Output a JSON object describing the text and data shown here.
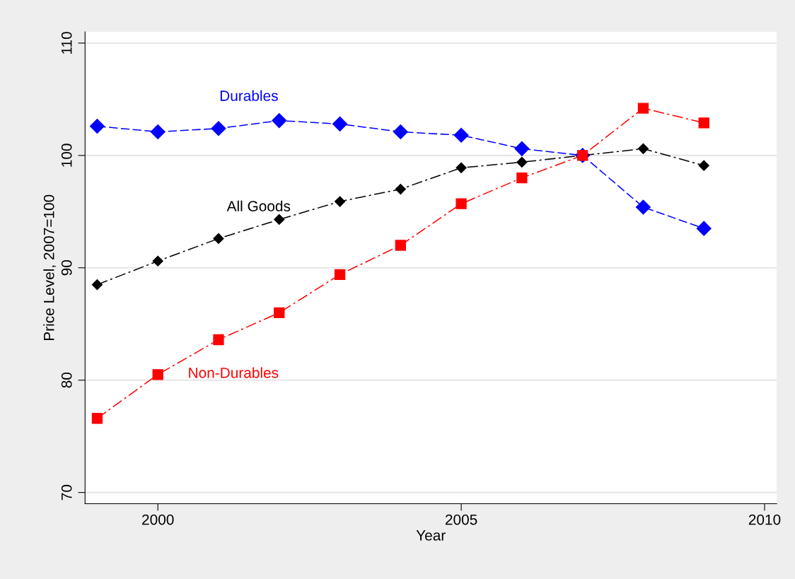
{
  "chart_data": {
    "type": "line",
    "xlabel": "Year",
    "ylabel": "Price Level, 2007=100",
    "x": [
      1999,
      2000,
      2001,
      2002,
      2003,
      2004,
      2005,
      2006,
      2007,
      2008,
      2009
    ],
    "series": [
      {
        "name": "Durables",
        "color": "#0000ff",
        "marker": "diamond",
        "line_style": "dashed",
        "values": [
          102.6,
          102.1,
          102.4,
          103.1,
          102.8,
          102.1,
          101.8,
          100.6,
          100.0,
          95.4,
          93.5
        ]
      },
      {
        "name": "All Goods",
        "color": "#000000",
        "marker": "diamond",
        "line_style": "dashdot",
        "values": [
          88.5,
          90.6,
          92.6,
          94.3,
          95.9,
          97.0,
          98.9,
          99.4,
          100.0,
          100.6,
          99.1
        ]
      },
      {
        "name": "Non-Durables",
        "color": "#ff0000",
        "marker": "square",
        "line_style": "dashdot",
        "values": [
          76.6,
          80.5,
          83.6,
          86.0,
          89.4,
          92.0,
          95.7,
          98.0,
          100.0,
          104.2,
          102.9
        ]
      }
    ],
    "xlim": [
      1998.8,
      2010.2
    ],
    "xticks": [
      2000,
      2005,
      2010
    ],
    "ylim": [
      69,
      111
    ],
    "yticks": [
      70,
      80,
      90,
      100,
      110
    ],
    "grid": "y"
  }
}
